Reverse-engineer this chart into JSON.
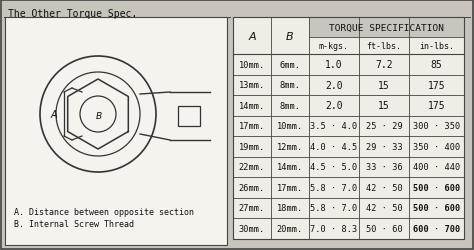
{
  "title": "The Other Torque Spec.",
  "table_header_main": "TORQUE SPECIFICATION",
  "rows": [
    [
      "10mm.",
      "6mm.",
      "1.0",
      "7.2",
      "85"
    ],
    [
      "13mm.",
      "8mm.",
      "2.0",
      "15",
      "175"
    ],
    [
      "14mm.",
      "8mm.",
      "2.0",
      "15",
      "175"
    ],
    [
      "17mm.",
      "10mm.",
      "3.5 · 4.0",
      "25 · 29",
      "300 · 350"
    ],
    [
      "19mm.",
      "12mm.",
      "4.0 · 4.5",
      "29 · 33",
      "350 · 400"
    ],
    [
      "22mm.",
      "14mm.",
      "4.5 · 5.0",
      "33 · 36",
      "400 · 440"
    ],
    [
      "26mm.",
      "17mm.",
      "5.8 · 7.0",
      "42 · 50",
      "500 · 600"
    ],
    [
      "27mm.",
      "18mm.",
      "5.8 · 7.0",
      "42 · 50",
      "500 · 600"
    ],
    [
      "30mm.",
      "20mm.",
      "7.0 · 8.3",
      "50 · 60",
      "600 · 700"
    ]
  ],
  "note_a": "A. Distance between opposite section",
  "note_b": "B. Internal Screw Thread",
  "bg_color": "#c8c4bc",
  "panel_bg": "#f0ede6",
  "table_bg": "#f0ede6",
  "border_color": "#444444",
  "text_color": "#111111",
  "header_bg": "#c8c5be",
  "white": "#f5f3ee"
}
